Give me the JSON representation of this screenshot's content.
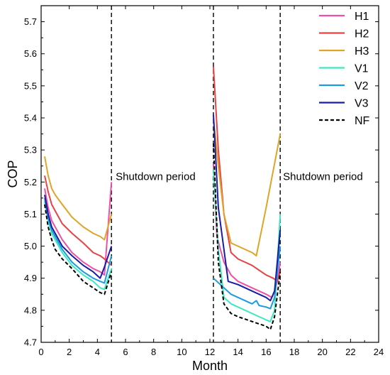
{
  "chart_data": {
    "type": "line",
    "title": "",
    "xlabel": "Month",
    "ylabel": "COP",
    "xlim": [
      0,
      24
    ],
    "ylim": [
      4.7,
      5.75
    ],
    "xticks": [
      0,
      2,
      4,
      6,
      8,
      10,
      12,
      14,
      16,
      18,
      20,
      22,
      24
    ],
    "yticks": [
      4.7,
      4.8,
      4.9,
      5.0,
      5.1,
      5.2,
      5.3,
      5.4,
      5.5,
      5.6,
      5.7
    ],
    "grid": false,
    "legend_position": "top-right",
    "annotations": [
      {
        "text": "Shutdown period",
        "x": 5.3,
        "y": 5.22
      },
      {
        "text": "Shutdown period",
        "x": 17.2,
        "y": 5.22
      }
    ],
    "vlines": [
      5.0,
      12.25,
      17.0
    ],
    "series": [
      {
        "name": "H1",
        "color": "#f04fa8",
        "dashed": false,
        "segments": [
          [
            [
              0.25,
              5.18
            ],
            [
              0.5,
              5.12
            ],
            [
              0.75,
              5.08
            ],
            [
              1.0,
              5.06
            ],
            [
              1.5,
              5.02
            ],
            [
              2.2,
              4.98
            ],
            [
              3.0,
              4.95
            ],
            [
              3.7,
              4.93
            ],
            [
              4.2,
              4.92
            ],
            [
              4.5,
              4.91
            ],
            [
              5.0,
              5.2
            ]
          ],
          [
            [
              12.25,
              5.26
            ],
            [
              12.5,
              5.03
            ],
            [
              13.0,
              4.95
            ],
            [
              13.5,
              4.91
            ],
            [
              14.0,
              4.89
            ],
            [
              15.0,
              4.87
            ],
            [
              16.0,
              4.85
            ],
            [
              16.4,
              4.84
            ],
            [
              16.6,
              4.86
            ],
            [
              16.8,
              4.89
            ],
            [
              17.0,
              4.95
            ]
          ]
        ]
      },
      {
        "name": "H2",
        "color": "#e84343",
        "dashed": false,
        "segments": [
          [
            [
              0.25,
              5.22
            ],
            [
              0.5,
              5.17
            ],
            [
              0.75,
              5.13
            ],
            [
              1.0,
              5.11
            ],
            [
              1.5,
              5.07
            ],
            [
              2.2,
              5.04
            ],
            [
              3.0,
              5.01
            ],
            [
              3.7,
              4.98
            ],
            [
              4.2,
              4.97
            ],
            [
              4.5,
              4.96
            ],
            [
              5.0,
              4.94
            ]
          ],
          [
            [
              12.25,
              5.56
            ],
            [
              12.6,
              5.3
            ],
            [
              13.0,
              5.1
            ],
            [
              13.5,
              4.98
            ],
            [
              14.0,
              4.96
            ],
            [
              15.0,
              4.94
            ],
            [
              16.0,
              4.91
            ],
            [
              16.5,
              4.9
            ],
            [
              16.8,
              4.89
            ],
            [
              17.0,
              4.92
            ]
          ]
        ]
      },
      {
        "name": "H3",
        "color": "#e0a426",
        "dashed": false,
        "segments": [
          [
            [
              0.25,
              5.28
            ],
            [
              0.5,
              5.22
            ],
            [
              0.75,
              5.18
            ],
            [
              1.0,
              5.16
            ],
            [
              1.5,
              5.13
            ],
            [
              2.2,
              5.09
            ],
            [
              3.0,
              5.06
            ],
            [
              3.7,
              5.04
            ],
            [
              4.2,
              5.03
            ],
            [
              4.5,
              5.02
            ],
            [
              5.0,
              5.1
            ]
          ],
          [
            [
              12.25,
              5.4
            ],
            [
              12.6,
              5.25
            ],
            [
              13.0,
              5.1
            ],
            [
              13.5,
              5.01
            ],
            [
              14.0,
              5.0
            ],
            [
              15.0,
              4.98
            ],
            [
              15.3,
              4.97
            ],
            [
              16.0,
              5.12
            ],
            [
              17.0,
              5.35
            ]
          ]
        ]
      },
      {
        "name": "V1",
        "color": "#3de8c0",
        "dashed": false,
        "segments": [
          [
            [
              0.25,
              5.14
            ],
            [
              0.5,
              5.08
            ],
            [
              0.75,
              5.04
            ],
            [
              1.0,
              5.02
            ],
            [
              1.5,
              4.98
            ],
            [
              2.2,
              4.94
            ],
            [
              3.0,
              4.91
            ],
            [
              3.7,
              4.89
            ],
            [
              4.2,
              4.87
            ],
            [
              4.5,
              4.865
            ],
            [
              5.0,
              4.93
            ]
          ],
          [
            [
              12.25,
              5.24
            ],
            [
              12.6,
              4.99
            ],
            [
              13.0,
              4.84
            ],
            [
              13.5,
              4.82
            ],
            [
              14.0,
              4.81
            ],
            [
              15.0,
              4.79
            ],
            [
              16.0,
              4.77
            ],
            [
              16.3,
              4.765
            ],
            [
              16.6,
              4.8
            ],
            [
              17.0,
              5.1
            ]
          ]
        ]
      },
      {
        "name": "V2",
        "color": "#1e9be0",
        "dashed": false,
        "segments": [
          [
            [
              0.25,
              5.15
            ],
            [
              0.5,
              5.09
            ],
            [
              0.75,
              5.05
            ],
            [
              1.0,
              5.03
            ],
            [
              1.5,
              4.99
            ],
            [
              2.2,
              4.95
            ],
            [
              3.0,
              4.92
            ],
            [
              3.7,
              4.9
            ],
            [
              4.2,
              4.89
            ],
            [
              4.5,
              4.885
            ],
            [
              5.0,
              4.97
            ]
          ],
          [
            [
              12.25,
              4.9
            ],
            [
              13.0,
              4.87
            ],
            [
              13.5,
              4.85
            ],
            [
              14.0,
              4.84
            ],
            [
              14.5,
              4.83
            ],
            [
              15.0,
              4.82
            ],
            [
              15.3,
              4.83
            ],
            [
              15.5,
              4.815
            ],
            [
              16.0,
              4.81
            ],
            [
              16.3,
              4.805
            ],
            [
              16.6,
              4.84
            ],
            [
              17.0,
              5.0
            ]
          ]
        ]
      },
      {
        "name": "V3",
        "color": "#1c1ca0",
        "dashed": false,
        "segments": [
          [
            [
              0.25,
              5.16
            ],
            [
              0.5,
              5.1
            ],
            [
              0.75,
              5.06
            ],
            [
              1.0,
              5.04
            ],
            [
              1.5,
              5.0
            ],
            [
              2.2,
              4.97
            ],
            [
              3.0,
              4.94
            ],
            [
              3.7,
              4.92
            ],
            [
              4.2,
              4.9
            ],
            [
              4.5,
              4.935
            ],
            [
              5.0,
              5.0
            ]
          ],
          [
            [
              12.25,
              5.41
            ],
            [
              12.6,
              5.12
            ],
            [
              13.0,
              4.99
            ],
            [
              13.3,
              4.89
            ],
            [
              14.0,
              4.88
            ],
            [
              15.0,
              4.86
            ],
            [
              16.0,
              4.84
            ],
            [
              16.3,
              4.83
            ],
            [
              16.6,
              4.86
            ],
            [
              17.0,
              5.05
            ]
          ]
        ]
      },
      {
        "name": "NF",
        "color": "#000000",
        "dashed": true,
        "segments": [
          [
            [
              0.25,
              5.13
            ],
            [
              0.5,
              5.06
            ],
            [
              0.75,
              5.02
            ],
            [
              1.0,
              4.99
            ],
            [
              1.5,
              4.96
            ],
            [
              2.2,
              4.93
            ],
            [
              3.0,
              4.89
            ],
            [
              3.7,
              4.87
            ],
            [
              4.2,
              4.855
            ],
            [
              4.5,
              4.85
            ],
            [
              5.0,
              4.92
            ]
          ],
          [
            [
              12.25,
              5.32
            ],
            [
              12.6,
              4.95
            ],
            [
              13.0,
              4.82
            ],
            [
              13.5,
              4.79
            ],
            [
              14.0,
              4.78
            ],
            [
              15.0,
              4.765
            ],
            [
              16.0,
              4.75
            ],
            [
              16.3,
              4.74
            ],
            [
              16.6,
              4.78
            ],
            [
              17.0,
              4.92
            ]
          ]
        ]
      }
    ]
  }
}
